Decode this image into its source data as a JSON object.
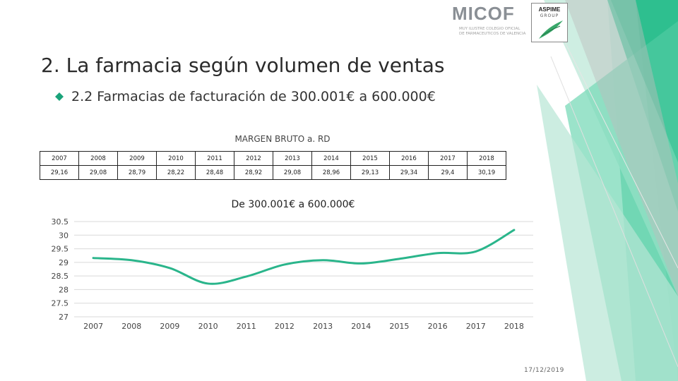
{
  "logos": {
    "micof_name": "MICOF",
    "micof_subtitle_1": "MUY ILUSTRE COLEGIO OFICIAL",
    "micof_subtitle_2": "DE FARMACEUTICOS DE VALENCIA",
    "aspime_name": "ASPIME",
    "aspime_sub": "GROUP"
  },
  "slide": {
    "title": "2. La farmacia según volumen de ventas",
    "subtitle": "2.2 Farmacias de facturación de 300.001€ a 600.000€",
    "table_caption": "MARGEN BRUTO a. RD",
    "table_years": [
      "2007",
      "2008",
      "2009",
      "2010",
      "2011",
      "2012",
      "2013",
      "2014",
      "2015",
      "2016",
      "2017",
      "2018"
    ],
    "table_values": [
      "29,16",
      "29,08",
      "28,79",
      "28,22",
      "28,48",
      "28,92",
      "29,08",
      "28,96",
      "29,13",
      "29,34",
      "29,4",
      "30,19"
    ],
    "date": "17/12/2019"
  },
  "colors": {
    "accent": "#2fbf8f",
    "line": "#2ab58b",
    "grid": "#d9d9d9"
  },
  "chart_data": {
    "type": "line",
    "title": "De 300.001€ a 600.000€",
    "categories": [
      "2007",
      "2008",
      "2009",
      "2010",
      "2011",
      "2012",
      "2013",
      "2014",
      "2015",
      "2016",
      "2017",
      "2018"
    ],
    "series": [
      {
        "name": "Margen bruto",
        "values": [
          29.16,
          29.08,
          28.79,
          28.22,
          28.48,
          28.92,
          29.08,
          28.96,
          29.13,
          29.34,
          29.4,
          30.19
        ]
      }
    ],
    "y_ticks": [
      "30.5",
      "30",
      "29.5",
      "29",
      "28.5",
      "28",
      "27.5",
      "27"
    ],
    "ylim": [
      27,
      30.5
    ],
    "xlabel": "",
    "ylabel": "",
    "grid": true,
    "legend": "none"
  }
}
